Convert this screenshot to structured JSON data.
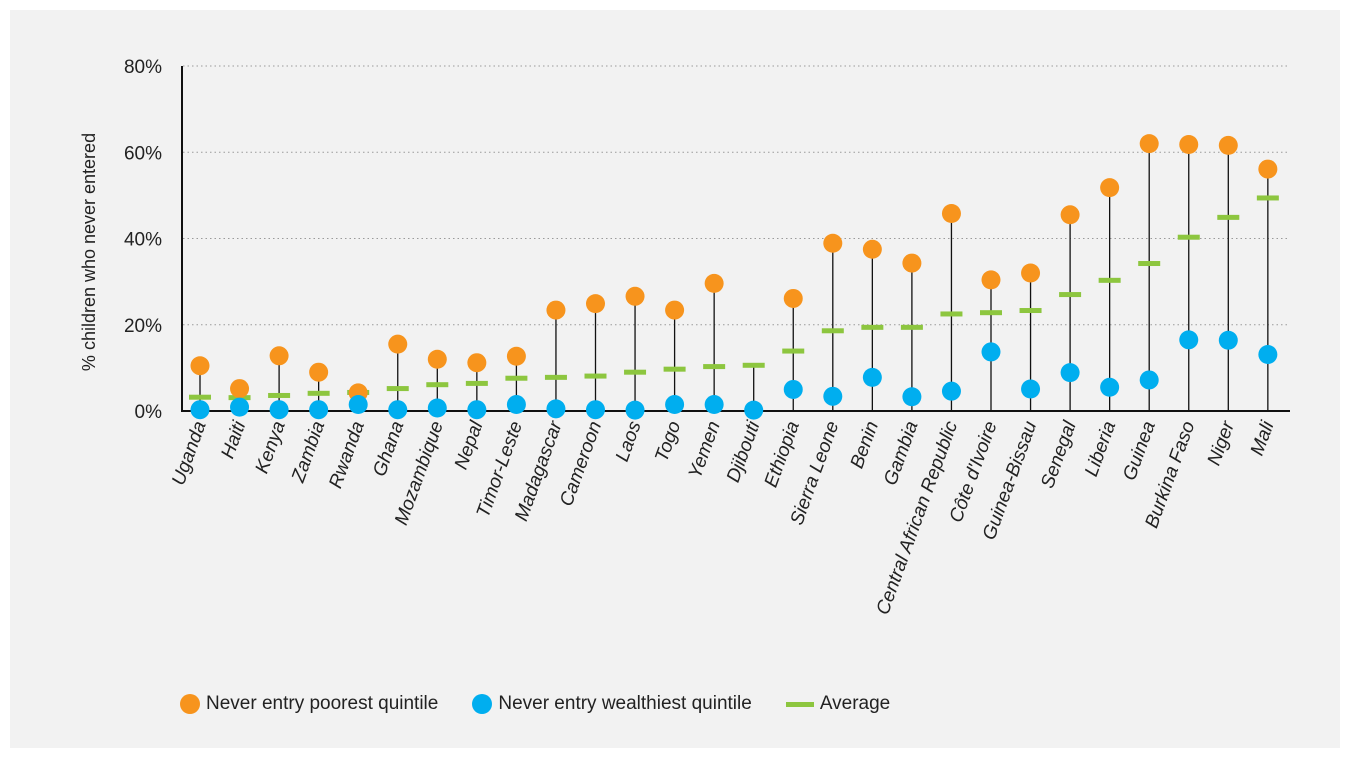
{
  "colors": {
    "poorest": "#f7941d",
    "wealthiest": "#00aeef",
    "average": "#8dc63f",
    "axis": "#111111",
    "grid": "#9a9a9a",
    "panel": "#f2f2f2"
  },
  "chart_data": {
    "type": "scatter",
    "ylabel": "% children who never entered",
    "ylim": [
      0,
      80
    ],
    "yticks": [
      "0%",
      "20%",
      "40%",
      "60%",
      "80%"
    ],
    "grid": "horizontal dotted",
    "legend_position": "bottom-left",
    "categories": [
      "Uganda",
      "Haiti",
      "Kenya",
      "Zambia",
      "Rwanda",
      "Ghana",
      "Mozambique",
      "Nepal",
      "Timor-Leste",
      "Madagascar",
      "Cameroon",
      "Laos",
      "Togo",
      "Yemen",
      "Djibouti",
      "Ethiopia",
      "Sierra Leone",
      "Benin",
      "Gambia",
      "Central African Republic",
      "Côte d'Ivoire",
      "Guinea-Bissau",
      "Senegal",
      "Liberia",
      "Guinea",
      "Burkina Faso",
      "Niger",
      "Mali"
    ],
    "series": [
      {
        "name": "Never entry poorest quintile",
        "marker": "circle",
        "values": [
          10.5,
          5.2,
          12.8,
          9.0,
          4.2,
          15.5,
          12.0,
          11.2,
          12.7,
          23.4,
          24.9,
          26.6,
          23.4,
          29.6,
          null,
          26.1,
          38.9,
          37.5,
          34.3,
          45.8,
          30.4,
          32.0,
          45.5,
          51.8,
          62.0,
          61.8,
          61.6,
          56.1
        ]
      },
      {
        "name": "Never entry wealthiest quintile",
        "marker": "circle",
        "values": [
          0.3,
          0.9,
          0.3,
          0.3,
          1.5,
          0.3,
          0.7,
          0.3,
          1.5,
          0.5,
          0.3,
          0.2,
          1.5,
          1.5,
          0.2,
          5.0,
          3.4,
          7.8,
          3.3,
          4.6,
          13.7,
          5.1,
          8.9,
          5.5,
          7.2,
          16.5,
          16.4,
          13.1
        ]
      },
      {
        "name": "Average",
        "marker": "dash",
        "values": [
          3.2,
          3.1,
          3.6,
          4.1,
          4.3,
          5.2,
          6.1,
          6.4,
          7.6,
          7.8,
          8.1,
          9.0,
          9.7,
          10.3,
          10.6,
          13.9,
          18.6,
          19.4,
          19.4,
          22.5,
          22.8,
          23.3,
          27.0,
          30.3,
          34.2,
          40.3,
          44.9,
          49.4
        ]
      }
    ]
  }
}
